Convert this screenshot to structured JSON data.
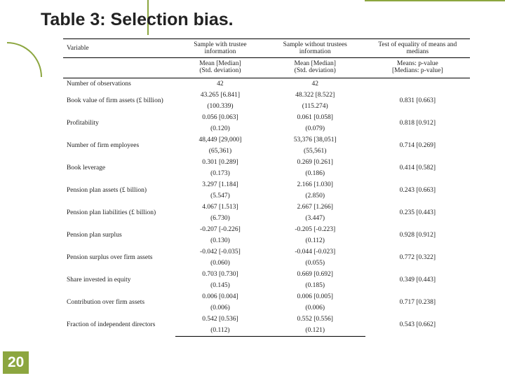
{
  "title": "Table 3: Selection bias.",
  "page_number": "20",
  "columns": {
    "variable": "Variable",
    "sample_with": "Sample with trustee information",
    "sample_without": "Sample without trustees information",
    "test": "Test of equality of means and medians",
    "sub_with": "Mean [Median]\n(Std. deviation)",
    "sub_without": "Mean [Median]\n(Std. deviation)",
    "sub_test": "Means: p-value\n[Medians: p-value]"
  },
  "rows": [
    {
      "var": "Number of observations",
      "a": "42",
      "a2": "",
      "b": "42",
      "b2": "",
      "c": "",
      "c2": ""
    },
    {
      "var": "Book value of firm assets (£ billion)",
      "a": "43.265 [6.841]",
      "a2": "(100.339)",
      "b": "48.322 [8.522]",
      "b2": "(115.274)",
      "c": "0.831 [0.663]",
      "c2": ""
    },
    {
      "var": "Profitability",
      "a": "0.056 [0.063]",
      "a2": "(0.120)",
      "b": "0.061 [0.058]",
      "b2": "(0.079)",
      "c": "0.818 [0.912]",
      "c2": ""
    },
    {
      "var": "Number of firm employees",
      "a": "48,449 [29,000]",
      "a2": "(65,361)",
      "b": "53,376 [38,051]",
      "b2": "(55,561)",
      "c": "0.714 [0.269]",
      "c2": ""
    },
    {
      "var": "Book leverage",
      "a": "0.301 [0.289]",
      "a2": "(0.173)",
      "b": "0.269 [0.261]",
      "b2": "(0.186)",
      "c": "0.414 [0.582]",
      "c2": ""
    },
    {
      "var": "Pension plan assets (£ billion)",
      "a": "3.297 [1.184]",
      "a2": "(5.547)",
      "b": "2.166 [1.030]",
      "b2": "(2.850)",
      "c": "0.243 [0.663]",
      "c2": ""
    },
    {
      "var": "Pension plan liabilities (£ billion)",
      "a": "4.067 [1.513]",
      "a2": "(6.730)",
      "b": "2.667 [1.266]",
      "b2": "(3.447)",
      "c": "0.235 [0.443]",
      "c2": ""
    },
    {
      "var": "Pension plan surplus",
      "a": "-0.207 [-0.226]",
      "a2": "(0.130)",
      "b": "-0.205 [-0.223]",
      "b2": "(0.112)",
      "c": "0.928 [0.912]",
      "c2": ""
    },
    {
      "var": "Pension surplus over firm assets",
      "a": "-0.042 [-0.035]",
      "a2": "(0.060)",
      "b": "-0.044 [-0.023]",
      "b2": "(0.055)",
      "c": "0.772 [0.322]",
      "c2": ""
    },
    {
      "var": "Share invested in equity",
      "a": "0.703 [0.730]",
      "a2": "(0.145)",
      "b": "0.669 [0.692]",
      "b2": "(0.185)",
      "c": "0.349 [0.443]",
      "c2": ""
    },
    {
      "var": "Contribution over firm assets",
      "a": "0.006 [0.004]",
      "a2": "(0.006)",
      "b": "0.006 [0.005]",
      "b2": "(0.006)",
      "c": "0.717 [0.238]",
      "c2": ""
    },
    {
      "var": "Fraction of independent directors",
      "a": "0.542 [0.536]",
      "a2": "(0.112)",
      "b": "0.552 [0.556]",
      "b2": "(0.121)",
      "c": "0.543 [0.662]",
      "c2": ""
    }
  ],
  "colors": {
    "accent": "#8ca63f",
    "text": "#222222",
    "bg": "#ffffff"
  }
}
